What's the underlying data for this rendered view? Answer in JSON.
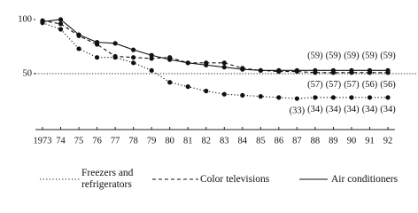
{
  "chart_data": {
    "type": "line",
    "categories": [
      "1973",
      "74",
      "75",
      "76",
      "77",
      "78",
      "79",
      "80",
      "81",
      "82",
      "83",
      "84",
      "85",
      "86",
      "87",
      "88",
      "89",
      "90",
      "91",
      "92"
    ],
    "ylim": [
      0,
      100
    ],
    "yticks": [
      50,
      100
    ],
    "hline": 50,
    "series": [
      {
        "name": "Freezers and refrigerators",
        "color": "#111111",
        "style": "dotted",
        "values": [
          97,
          91,
          73,
          65,
          65,
          60,
          53,
          42,
          38,
          34,
          31,
          30,
          29,
          28,
          27,
          28,
          28,
          28,
          28,
          28
        ],
        "point_labels": [
          null,
          null,
          null,
          null,
          null,
          null,
          null,
          null,
          null,
          null,
          null,
          null,
          null,
          null,
          "(33)",
          "(34)",
          "(34)",
          "(34)",
          "(34)",
          "(34)"
        ]
      },
      {
        "name": "Color televisions",
        "color": "#111111",
        "style": "dashed",
        "values": [
          99,
          96,
          85,
          77,
          66,
          65,
          64,
          65,
          60,
          60,
          60,
          55,
          53,
          52,
          52,
          51,
          51,
          51,
          51,
          51
        ],
        "point_labels": [
          null,
          null,
          null,
          null,
          null,
          null,
          null,
          null,
          null,
          null,
          null,
          null,
          null,
          null,
          null,
          "(57)",
          "(57)",
          "(57)",
          "(56)",
          "(56)"
        ]
      },
      {
        "name": "Air conditioners",
        "color": "#111111",
        "style": "solid",
        "values": [
          98,
          100,
          86,
          79,
          78,
          72,
          67,
          63,
          60,
          58,
          56,
          54,
          53,
          53,
          53,
          53,
          53,
          53,
          53,
          53
        ],
        "point_labels": [
          null,
          null,
          null,
          null,
          null,
          null,
          null,
          null,
          null,
          null,
          null,
          null,
          null,
          null,
          null,
          "(59)",
          "(59)",
          "(59)",
          "(59)",
          "(59)"
        ]
      }
    ]
  }
}
